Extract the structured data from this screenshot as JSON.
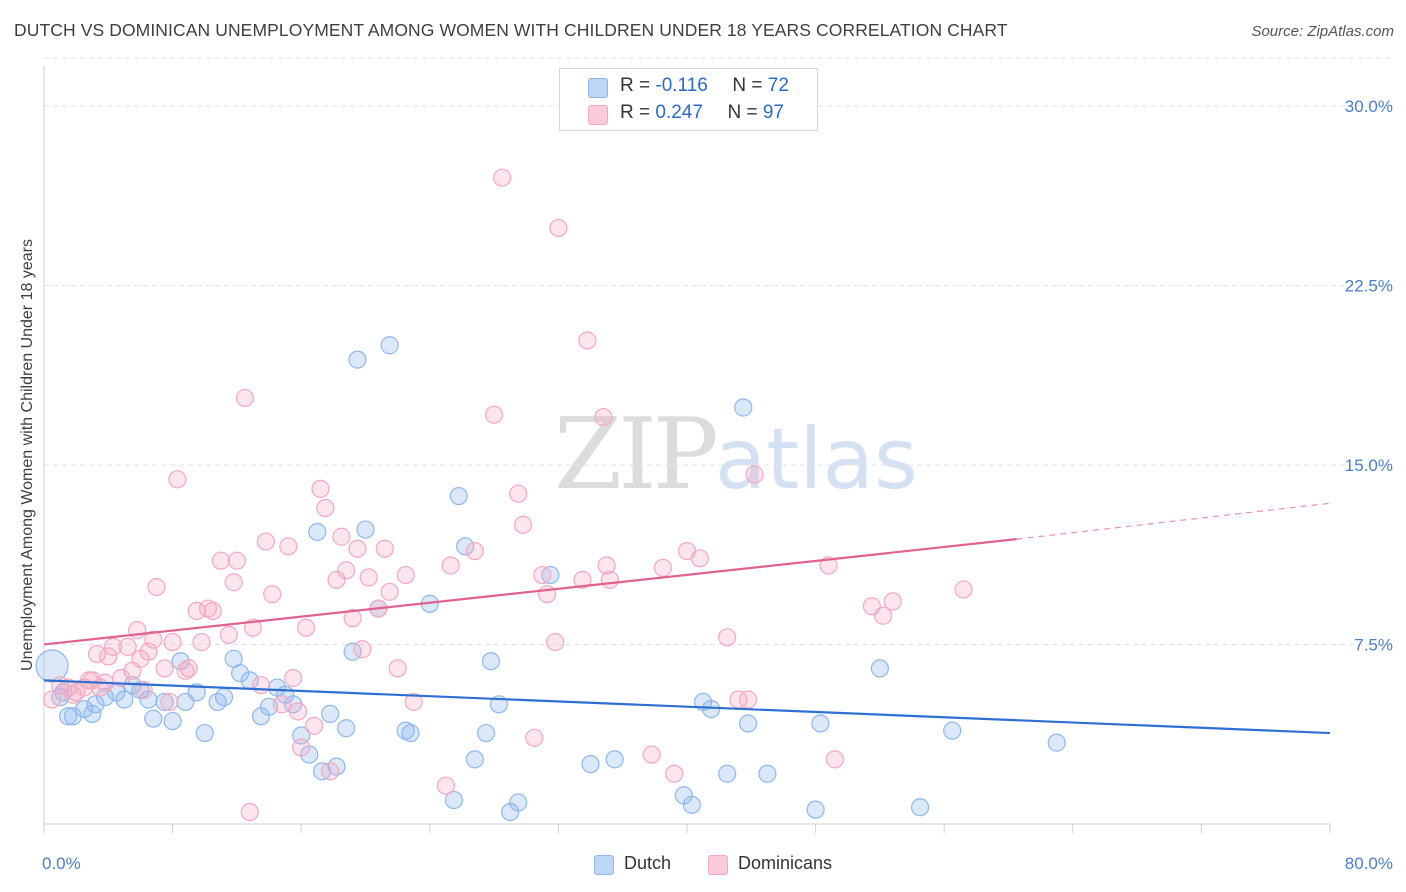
{
  "header": {
    "title": "DUTCH VS DOMINICAN UNEMPLOYMENT AMONG WOMEN WITH CHILDREN UNDER 18 YEARS CORRELATION CHART",
    "source": "Source: ZipAtlas.com"
  },
  "watermark": {
    "zip": "ZIP",
    "atlas": "atlas"
  },
  "legend": {
    "dutch": {
      "r_label": "R = ",
      "r_value": "-0.116",
      "n_label": "N = ",
      "n_value": "72",
      "color": "#8db8ee"
    },
    "dominicans": {
      "r_label": "R = ",
      "r_value": "0.247",
      "n_label": "N = ",
      "n_value": "97",
      "color": "#f4a8c0"
    }
  },
  "bottom_legend": {
    "dutch": "Dutch",
    "dominicans": "Dominicans"
  },
  "chart_data": {
    "type": "scatter",
    "title": "DUTCH VS DOMINICAN UNEMPLOYMENT AMONG WOMEN WITH CHILDREN UNDER 18 YEARS CORRELATION CHART",
    "xlabel": "",
    "ylabel": "Unemployment Among Women with Children Under 18 years",
    "xlim": [
      0,
      80
    ],
    "ylim": [
      0,
      32
    ],
    "x_tick_labels": [
      {
        "value": 0,
        "label": "0.0%"
      },
      {
        "value": 80,
        "label": "80.0%"
      }
    ],
    "y_tick_labels": [
      {
        "value": 7.5,
        "label": "7.5%"
      },
      {
        "value": 15,
        "label": "15.0%"
      },
      {
        "value": 22.5,
        "label": "22.5%"
      },
      {
        "value": 30,
        "label": "30.0%"
      }
    ],
    "grid": true,
    "series": [
      {
        "name": "Dutch",
        "color": "#8db8ee",
        "line_color": "#2e6fd1",
        "trend": {
          "x0": 0,
          "y0": 6.0,
          "x1": 80,
          "y1": 3.8
        },
        "points": [
          [
            0.5,
            6.6
          ],
          [
            1.2,
            5.5
          ],
          [
            1.5,
            4.5
          ],
          [
            1.8,
            4.5
          ],
          [
            2.5,
            4.8
          ],
          [
            3.0,
            4.6
          ],
          [
            3.2,
            5.0
          ],
          [
            3.8,
            5.3
          ],
          [
            4.5,
            5.5
          ],
          [
            5.0,
            5.2
          ],
          [
            5.5,
            5.8
          ],
          [
            6.0,
            5.6
          ],
          [
            6.5,
            5.2
          ],
          [
            6.8,
            4.4
          ],
          [
            7.5,
            5.1
          ],
          [
            8.0,
            4.3
          ],
          [
            8.5,
            6.8
          ],
          [
            8.8,
            5.1
          ],
          [
            9.5,
            5.5
          ],
          [
            10.0,
            3.8
          ],
          [
            10.8,
            5.1
          ],
          [
            11.2,
            5.3
          ],
          [
            11.8,
            6.9
          ],
          [
            12.2,
            6.3
          ],
          [
            12.8,
            6.0
          ],
          [
            13.5,
            4.5
          ],
          [
            14.0,
            4.9
          ],
          [
            14.5,
            5.7
          ],
          [
            15.0,
            5.4
          ],
          [
            15.5,
            5.0
          ],
          [
            16.0,
            3.7
          ],
          [
            16.5,
            2.9
          ],
          [
            17.0,
            12.2
          ],
          [
            17.3,
            2.2
          ],
          [
            17.8,
            4.6
          ],
          [
            18.2,
            2.4
          ],
          [
            18.8,
            4.0
          ],
          [
            19.2,
            7.2
          ],
          [
            19.5,
            19.4
          ],
          [
            20.0,
            12.3
          ],
          [
            20.8,
            9.0
          ],
          [
            21.5,
            20.0
          ],
          [
            22.5,
            3.9
          ],
          [
            22.8,
            3.8
          ],
          [
            24.0,
            9.2
          ],
          [
            25.5,
            1.0
          ],
          [
            25.8,
            13.7
          ],
          [
            26.2,
            11.6
          ],
          [
            26.8,
            2.7
          ],
          [
            27.5,
            3.8
          ],
          [
            27.8,
            6.8
          ],
          [
            28.3,
            5.0
          ],
          [
            29.0,
            0.5
          ],
          [
            29.5,
            0.9
          ],
          [
            31.5,
            10.4
          ],
          [
            34.0,
            2.5
          ],
          [
            35.5,
            2.7
          ],
          [
            39.8,
            1.2
          ],
          [
            40.3,
            0.8
          ],
          [
            41.0,
            5.1
          ],
          [
            41.5,
            4.8
          ],
          [
            42.5,
            2.1
          ],
          [
            43.5,
            17.4
          ],
          [
            43.8,
            4.2
          ],
          [
            45.0,
            2.1
          ],
          [
            48.0,
            0.6
          ],
          [
            48.3,
            4.2
          ],
          [
            52.0,
            6.5
          ],
          [
            54.5,
            0.7
          ],
          [
            56.5,
            3.9
          ],
          [
            63.0,
            3.4
          ],
          [
            1.0,
            5.3
          ]
        ]
      },
      {
        "name": "Dominicans",
        "color": "#f4a8c0",
        "line_color": "#e0628f",
        "trend": {
          "x0": 0,
          "y0": 7.5,
          "x1": 60.5,
          "y1": 11.9
        },
        "trend_dashed": {
          "x0": 60.5,
          "y0": 11.9,
          "x1": 80,
          "y1": 13.4
        },
        "points": [
          [
            0.5,
            5.2
          ],
          [
            1.0,
            5.8
          ],
          [
            1.5,
            5.7
          ],
          [
            2.0,
            5.5
          ],
          [
            2.5,
            5.7
          ],
          [
            3.0,
            6.0
          ],
          [
            3.3,
            7.1
          ],
          [
            3.8,
            5.9
          ],
          [
            4.0,
            7.0
          ],
          [
            4.3,
            7.4
          ],
          [
            4.8,
            6.1
          ],
          [
            5.2,
            7.4
          ],
          [
            5.5,
            6.4
          ],
          [
            5.8,
            8.1
          ],
          [
            6.2,
            5.6
          ],
          [
            6.5,
            7.2
          ],
          [
            6.8,
            7.7
          ],
          [
            7.0,
            9.9
          ],
          [
            7.5,
            6.5
          ],
          [
            7.8,
            5.1
          ],
          [
            8.0,
            7.6
          ],
          [
            8.3,
            14.4
          ],
          [
            8.8,
            6.4
          ],
          [
            9.0,
            6.5
          ],
          [
            9.5,
            8.9
          ],
          [
            9.8,
            7.6
          ],
          [
            10.2,
            9.0
          ],
          [
            10.5,
            8.9
          ],
          [
            11.0,
            11.0
          ],
          [
            11.5,
            7.9
          ],
          [
            11.8,
            10.1
          ],
          [
            12.0,
            11.0
          ],
          [
            12.5,
            17.8
          ],
          [
            12.8,
            0.5
          ],
          [
            13.0,
            8.2
          ],
          [
            13.5,
            5.8
          ],
          [
            13.8,
            11.8
          ],
          [
            14.2,
            9.6
          ],
          [
            14.8,
            5.0
          ],
          [
            15.2,
            11.6
          ],
          [
            15.5,
            6.1
          ],
          [
            15.8,
            4.7
          ],
          [
            16.0,
            3.2
          ],
          [
            16.3,
            8.2
          ],
          [
            16.8,
            4.1
          ],
          [
            17.2,
            14.0
          ],
          [
            17.5,
            13.2
          ],
          [
            17.8,
            2.2
          ],
          [
            18.2,
            10.2
          ],
          [
            18.5,
            12.0
          ],
          [
            18.8,
            10.6
          ],
          [
            19.2,
            8.6
          ],
          [
            19.5,
            11.5
          ],
          [
            19.8,
            7.3
          ],
          [
            20.2,
            10.3
          ],
          [
            20.8,
            9.0
          ],
          [
            21.2,
            11.5
          ],
          [
            21.5,
            9.7
          ],
          [
            22.0,
            6.5
          ],
          [
            22.5,
            10.4
          ],
          [
            23.0,
            5.1
          ],
          [
            25.0,
            1.6
          ],
          [
            25.3,
            10.8
          ],
          [
            26.8,
            11.4
          ],
          [
            28.0,
            17.1
          ],
          [
            28.5,
            27.0
          ],
          [
            29.5,
            13.8
          ],
          [
            29.8,
            12.5
          ],
          [
            30.5,
            3.6
          ],
          [
            31.0,
            10.4
          ],
          [
            31.3,
            9.6
          ],
          [
            31.8,
            7.6
          ],
          [
            32.0,
            24.9
          ],
          [
            33.5,
            10.2
          ],
          [
            33.8,
            20.2
          ],
          [
            34.8,
            17.0
          ],
          [
            35.0,
            10.8
          ],
          [
            35.2,
            10.2
          ],
          [
            37.8,
            2.9
          ],
          [
            38.5,
            10.7
          ],
          [
            39.2,
            2.1
          ],
          [
            40.0,
            11.4
          ],
          [
            40.8,
            11.1
          ],
          [
            42.5,
            7.8
          ],
          [
            43.2,
            5.2
          ],
          [
            43.8,
            5.2
          ],
          [
            44.2,
            14.6
          ],
          [
            48.8,
            10.8
          ],
          [
            49.2,
            2.7
          ],
          [
            51.5,
            9.1
          ],
          [
            52.2,
            8.7
          ],
          [
            52.8,
            9.3
          ],
          [
            57.2,
            9.8
          ],
          [
            1.8,
            5.4
          ],
          [
            3.5,
            5.7
          ],
          [
            6.0,
            6.9
          ],
          [
            2.8,
            6.0
          ]
        ]
      }
    ]
  }
}
